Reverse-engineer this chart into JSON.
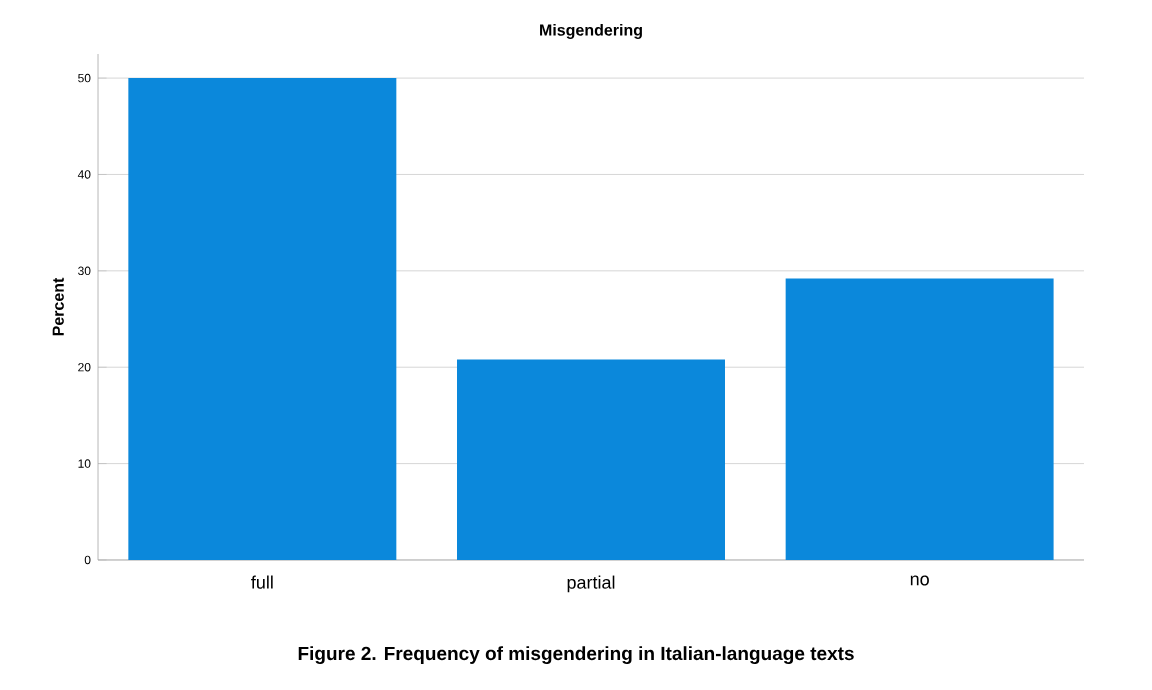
{
  "chart_data": {
    "type": "bar",
    "title": "Misgendering",
    "ylabel": "Percent",
    "categories": [
      "full",
      "partial",
      "no"
    ],
    "values": [
      50,
      20.8,
      29.2
    ],
    "color": "#0b88db",
    "ylim": [
      0,
      52.5
    ],
    "yticks": [
      0,
      10,
      20,
      30,
      40,
      50
    ],
    "grid": "y",
    "annotations": [
      "Figure 2. Frequency of misgendering in Italian-language texts"
    ]
  }
}
